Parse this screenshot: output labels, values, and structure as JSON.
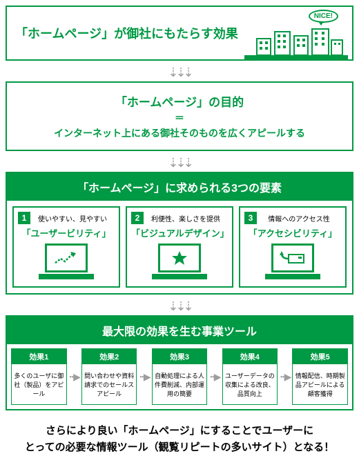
{
  "colors": {
    "green": "#009944",
    "gray": "#9e9e9e",
    "text": "#222"
  },
  "hero": {
    "title": "「ホームページ」が御社にもたらす効果",
    "nice": "NICE!"
  },
  "purpose": {
    "title": "「ホームページ」の目的",
    "eq": "＝",
    "sub": "インターネット上にある御社そのものを広くアピールする"
  },
  "three": {
    "band": "「ホームページ」に求められる3つの要素",
    "items": [
      {
        "n": "1",
        "small": "使いやすい、見やすい",
        "cat": "「ユーザービリティ」"
      },
      {
        "n": "2",
        "small": "利便性、楽しさを提供",
        "cat": "「ビジュアルデザイン」"
      },
      {
        "n": "3",
        "small": "情報へのアクセス性",
        "cat": "「アクセシビリティ」"
      }
    ]
  },
  "effects": {
    "band": "最大限の効果を生む事業ツール",
    "items": [
      {
        "h": "効果1",
        "b": "多くのユーザに御社（製品）をアピール"
      },
      {
        "h": "効果2",
        "b": "問い合わせや資料請求でのセールスアピール"
      },
      {
        "h": "効果3",
        "b": "自動処理による人件費削減、内部運用の簡要"
      },
      {
        "h": "効果4",
        "b": "ユーザーデータの収集による改良、品質向上"
      },
      {
        "h": "効果5",
        "b": "情報配信、時期製品アピールによる顧客獲得"
      }
    ]
  },
  "conclusion": {
    "l1": "さらにより良い「ホームページ」にすることでユーザーに",
    "l2": "とっての必要な情報ツール（観覧リピートの多いサイト）となる！"
  },
  "arrows": {
    "down": "⇣⇣⇣",
    "right": "┅▶"
  }
}
